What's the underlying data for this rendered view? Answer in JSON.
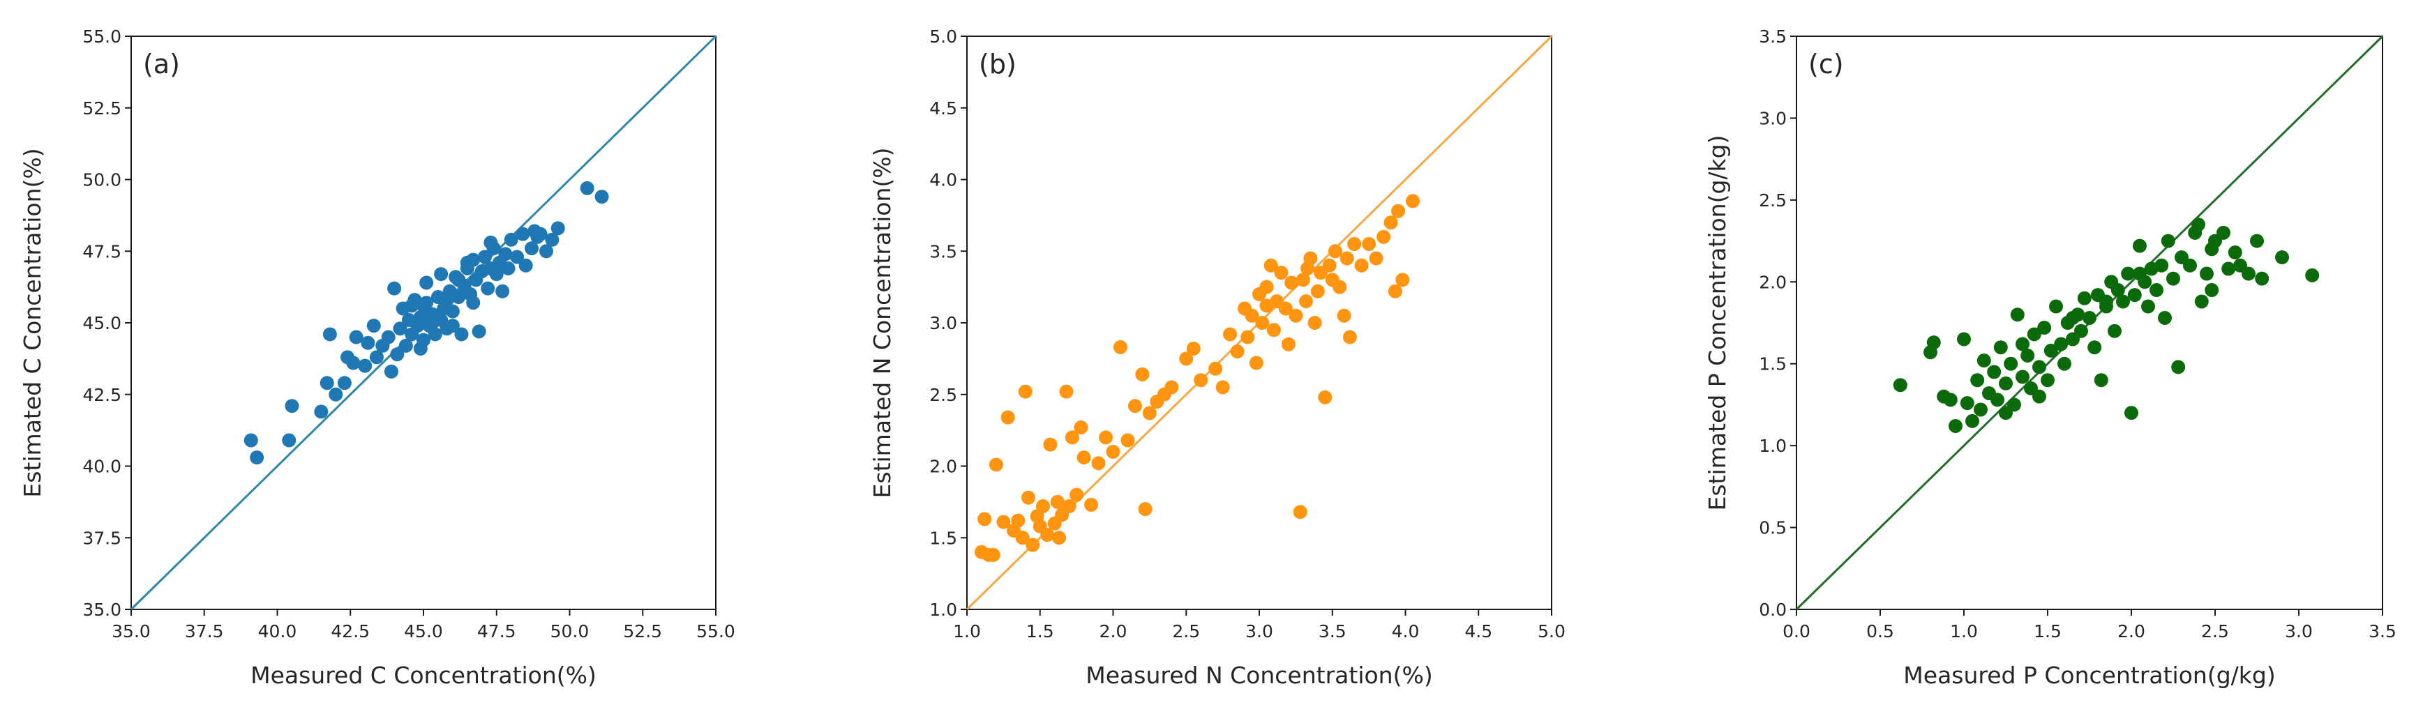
{
  "chart_data": [
    {
      "type": "scatter",
      "panel_label": "(a)",
      "xlabel": "Measured C Concentration(%)",
      "ylabel": "Estimated C Concentration(%)",
      "xlim": [
        35.0,
        55.0
      ],
      "ylim": [
        35.0,
        55.0
      ],
      "xticks": [
        "35.0",
        "37.5",
        "40.0",
        "42.5",
        "45.0",
        "47.5",
        "50.0",
        "52.5",
        "55.0"
      ],
      "yticks": [
        "35.0",
        "37.5",
        "40.0",
        "42.5",
        "45.0",
        "47.5",
        "50.0",
        "52.5",
        "55.0"
      ],
      "point_color": "#1f77b4",
      "line_color": "#2e86ab",
      "reference_line": [
        [
          35.0,
          35.0
        ],
        [
          55.0,
          55.0
        ]
      ],
      "points": [
        [
          39.1,
          40.9
        ],
        [
          39.3,
          40.3
        ],
        [
          40.4,
          40.9
        ],
        [
          40.5,
          42.1
        ],
        [
          41.5,
          41.9
        ],
        [
          41.7,
          42.9
        ],
        [
          41.8,
          44.6
        ],
        [
          42.0,
          42.5
        ],
        [
          42.3,
          42.9
        ],
        [
          42.6,
          43.6
        ],
        [
          42.7,
          44.5
        ],
        [
          43.0,
          43.5
        ],
        [
          43.1,
          44.3
        ],
        [
          43.4,
          43.8
        ],
        [
          43.6,
          44.2
        ],
        [
          43.8,
          44.5
        ],
        [
          43.9,
          43.3
        ],
        [
          44.0,
          46.2
        ],
        [
          44.1,
          43.9
        ],
        [
          44.2,
          44.8
        ],
        [
          44.3,
          45.5
        ],
        [
          44.4,
          44.2
        ],
        [
          44.5,
          45.1
        ],
        [
          44.6,
          44.6
        ],
        [
          44.7,
          45.8
        ],
        [
          44.8,
          44.9
        ],
        [
          44.9,
          45.2
        ],
        [
          45.0,
          44.4
        ],
        [
          45.0,
          45.6
        ],
        [
          45.1,
          46.4
        ],
        [
          45.2,
          44.9
        ],
        [
          45.3,
          45.3
        ],
        [
          45.4,
          44.6
        ],
        [
          45.5,
          45.9
        ],
        [
          45.6,
          45.1
        ],
        [
          45.7,
          45.5
        ],
        [
          45.8,
          44.8
        ],
        [
          45.9,
          46.1
        ],
        [
          46.0,
          45.4
        ],
        [
          46.1,
          46.6
        ],
        [
          46.2,
          45.9
        ],
        [
          46.3,
          44.6
        ],
        [
          46.4,
          46.3
        ],
        [
          46.5,
          46.9
        ],
        [
          46.6,
          46.0
        ],
        [
          46.7,
          47.2
        ],
        [
          46.8,
          46.5
        ],
        [
          46.9,
          44.7
        ],
        [
          47.0,
          46.8
        ],
        [
          47.1,
          47.3
        ],
        [
          47.2,
          46.2
        ],
        [
          47.3,
          46.9
        ],
        [
          47.4,
          47.6
        ],
        [
          47.5,
          46.7
        ],
        [
          47.6,
          47.1
        ],
        [
          47.7,
          46.1
        ],
        [
          47.8,
          47.4
        ],
        [
          48.0,
          47.9
        ],
        [
          48.2,
          47.3
        ],
        [
          48.4,
          48.1
        ],
        [
          48.5,
          47.0
        ],
        [
          48.7,
          47.6
        ],
        [
          48.8,
          48.2
        ],
        [
          49.0,
          48.1
        ],
        [
          49.2,
          47.5
        ],
        [
          49.4,
          47.9
        ],
        [
          49.6,
          48.3
        ],
        [
          50.6,
          49.7
        ],
        [
          51.1,
          49.4
        ],
        [
          45.3,
          45.0
        ],
        [
          45.6,
          46.7
        ],
        [
          46.0,
          44.9
        ],
        [
          44.9,
          44.1
        ],
        [
          46.5,
          47.1
        ],
        [
          47.9,
          46.9
        ],
        [
          43.3,
          44.9
        ],
        [
          42.4,
          43.8
        ],
        [
          46.7,
          45.7
        ],
        [
          45.8,
          45.8
        ],
        [
          44.6,
          45.6
        ],
        [
          47.3,
          47.8
        ],
        [
          48.9,
          48.0
        ],
        [
          46.2,
          46.5
        ],
        [
          45.1,
          45.7
        ]
      ]
    },
    {
      "type": "scatter",
      "panel_label": "(b)",
      "xlabel": "Measured N Concentration(%)",
      "ylabel": "Estimated N Concentration(%)",
      "xlim": [
        1.0,
        5.0
      ],
      "ylim": [
        1.0,
        5.0
      ],
      "xticks": [
        "1.0",
        "1.5",
        "2.0",
        "2.5",
        "3.0",
        "3.5",
        "4.0",
        "4.5",
        "5.0"
      ],
      "yticks": [
        "1.0",
        "1.5",
        "2.0",
        "2.5",
        "3.0",
        "3.5",
        "4.0",
        "4.5",
        "5.0"
      ],
      "point_color": "#ff9410",
      "line_color": "#f5a742",
      "reference_line": [
        [
          1.0,
          1.0
        ],
        [
          5.0,
          5.0
        ]
      ],
      "points": [
        [
          1.1,
          1.4
        ],
        [
          1.12,
          1.63
        ],
        [
          1.18,
          1.38
        ],
        [
          1.2,
          2.01
        ],
        [
          1.25,
          1.61
        ],
        [
          1.28,
          2.34
        ],
        [
          1.32,
          1.55
        ],
        [
          1.38,
          1.5
        ],
        [
          1.4,
          2.52
        ],
        [
          1.42,
          1.78
        ],
        [
          1.45,
          1.45
        ],
        [
          1.48,
          1.65
        ],
        [
          1.5,
          1.58
        ],
        [
          1.52,
          1.72
        ],
        [
          1.55,
          1.52
        ],
        [
          1.57,
          2.15
        ],
        [
          1.6,
          1.6
        ],
        [
          1.62,
          1.75
        ],
        [
          1.65,
          1.66
        ],
        [
          1.68,
          2.52
        ],
        [
          1.7,
          1.72
        ],
        [
          1.72,
          2.2
        ],
        [
          1.75,
          1.8
        ],
        [
          1.78,
          2.27
        ],
        [
          1.8,
          2.06
        ],
        [
          1.85,
          1.73
        ],
        [
          1.9,
          2.02
        ],
        [
          1.95,
          2.2
        ],
        [
          2.0,
          2.1
        ],
        [
          2.05,
          2.83
        ],
        [
          2.1,
          2.18
        ],
        [
          2.15,
          2.42
        ],
        [
          2.2,
          2.64
        ],
        [
          2.22,
          1.7
        ],
        [
          2.25,
          2.37
        ],
        [
          2.3,
          2.45
        ],
        [
          2.35,
          2.5
        ],
        [
          2.4,
          2.55
        ],
        [
          2.5,
          2.75
        ],
        [
          2.55,
          2.82
        ],
        [
          2.6,
          2.6
        ],
        [
          2.7,
          2.68
        ],
        [
          2.75,
          2.55
        ],
        [
          2.8,
          2.92
        ],
        [
          2.85,
          2.8
        ],
        [
          2.9,
          3.1
        ],
        [
          2.92,
          2.9
        ],
        [
          2.95,
          3.05
        ],
        [
          2.98,
          2.72
        ],
        [
          3.0,
          3.2
        ],
        [
          3.02,
          3.0
        ],
        [
          3.05,
          3.25
        ],
        [
          3.08,
          3.4
        ],
        [
          3.1,
          2.95
        ],
        [
          3.12,
          3.15
        ],
        [
          3.15,
          3.35
        ],
        [
          3.18,
          3.1
        ],
        [
          3.2,
          2.85
        ],
        [
          3.22,
          3.28
        ],
        [
          3.25,
          3.05
        ],
        [
          3.28,
          1.68
        ],
        [
          3.3,
          3.3
        ],
        [
          3.32,
          3.15
        ],
        [
          3.35,
          3.45
        ],
        [
          3.38,
          3.0
        ],
        [
          3.4,
          3.22
        ],
        [
          3.42,
          3.35
        ],
        [
          3.45,
          2.48
        ],
        [
          3.48,
          3.4
        ],
        [
          3.5,
          3.3
        ],
        [
          3.52,
          3.5
        ],
        [
          3.55,
          3.25
        ],
        [
          3.58,
          3.05
        ],
        [
          3.6,
          3.45
        ],
        [
          3.62,
          2.9
        ],
        [
          3.65,
          3.55
        ],
        [
          3.7,
          3.4
        ],
        [
          3.75,
          3.55
        ],
        [
          3.8,
          3.45
        ],
        [
          3.85,
          3.6
        ],
        [
          3.9,
          3.7
        ],
        [
          3.93,
          3.22
        ],
        [
          3.95,
          3.78
        ],
        [
          3.98,
          3.3
        ],
        [
          4.05,
          3.85
        ],
        [
          1.15,
          1.38
        ],
        [
          1.35,
          1.62
        ],
        [
          1.63,
          1.5
        ],
        [
          3.05,
          3.12
        ],
        [
          3.33,
          3.38
        ]
      ]
    },
    {
      "type": "scatter",
      "panel_label": "(c)",
      "xlabel": "Measured P Concentration(g/kg)",
      "ylabel": "Estimated P Concentration(g/kg)",
      "xlim": [
        0.0,
        3.5
      ],
      "ylim": [
        0.0,
        3.5
      ],
      "xticks": [
        "0.0",
        "0.5",
        "1.0",
        "1.5",
        "2.0",
        "2.5",
        "3.0",
        "3.5"
      ],
      "yticks": [
        "0.0",
        "0.5",
        "1.0",
        "1.5",
        "2.0",
        "2.5",
        "3.0",
        "3.5"
      ],
      "point_color": "#0b6b0b",
      "line_color": "#1f6e2a",
      "reference_line": [
        [
          0.0,
          0.0
        ],
        [
          3.5,
          3.5
        ]
      ],
      "points": [
        [
          0.62,
          1.37
        ],
        [
          0.8,
          1.57
        ],
        [
          0.82,
          1.63
        ],
        [
          0.88,
          1.3
        ],
        [
          0.92,
          1.28
        ],
        [
          0.95,
          1.12
        ],
        [
          1.0,
          1.65
        ],
        [
          1.02,
          1.26
        ],
        [
          1.05,
          1.15
        ],
        [
          1.08,
          1.4
        ],
        [
          1.1,
          1.22
        ],
        [
          1.12,
          1.52
        ],
        [
          1.15,
          1.32
        ],
        [
          1.18,
          1.45
        ],
        [
          1.2,
          1.28
        ],
        [
          1.22,
          1.6
        ],
        [
          1.25,
          1.38
        ],
        [
          1.28,
          1.5
        ],
        [
          1.3,
          1.25
        ],
        [
          1.32,
          1.8
        ],
        [
          1.35,
          1.42
        ],
        [
          1.38,
          1.55
        ],
        [
          1.4,
          1.35
        ],
        [
          1.42,
          1.68
        ],
        [
          1.45,
          1.48
        ],
        [
          1.48,
          1.72
        ],
        [
          1.5,
          1.4
        ],
        [
          1.52,
          1.58
        ],
        [
          1.55,
          1.85
        ],
        [
          1.58,
          1.62
        ],
        [
          1.6,
          1.5
        ],
        [
          1.62,
          1.75
        ],
        [
          1.65,
          1.65
        ],
        [
          1.68,
          1.8
        ],
        [
          1.7,
          1.7
        ],
        [
          1.72,
          1.9
        ],
        [
          1.75,
          1.78
        ],
        [
          1.78,
          1.6
        ],
        [
          1.8,
          1.92
        ],
        [
          1.82,
          1.4
        ],
        [
          1.85,
          1.85
        ],
        [
          1.88,
          2.0
        ],
        [
          1.9,
          1.7
        ],
        [
          1.92,
          1.95
        ],
        [
          1.95,
          1.88
        ],
        [
          1.98,
          2.05
        ],
        [
          2.0,
          1.2
        ],
        [
          2.02,
          1.92
        ],
        [
          2.05,
          2.22
        ],
        [
          2.08,
          2.0
        ],
        [
          2.1,
          1.85
        ],
        [
          2.12,
          2.08
        ],
        [
          2.15,
          1.95
        ],
        [
          2.18,
          2.1
        ],
        [
          2.2,
          1.78
        ],
        [
          2.22,
          2.25
        ],
        [
          2.25,
          2.02
        ],
        [
          2.28,
          1.48
        ],
        [
          2.3,
          2.15
        ],
        [
          2.35,
          2.1
        ],
        [
          2.38,
          2.3
        ],
        [
          2.4,
          2.35
        ],
        [
          2.42,
          1.88
        ],
        [
          2.45,
          2.05
        ],
        [
          2.48,
          2.2
        ],
        [
          2.5,
          2.25
        ],
        [
          2.55,
          2.3
        ],
        [
          2.58,
          2.08
        ],
        [
          2.62,
          2.18
        ],
        [
          2.65,
          2.1
        ],
        [
          2.7,
          2.05
        ],
        [
          2.75,
          2.25
        ],
        [
          2.78,
          2.02
        ],
        [
          2.9,
          2.15
        ],
        [
          3.08,
          2.04
        ],
        [
          1.25,
          1.2
        ],
        [
          1.45,
          1.3
        ],
        [
          1.65,
          1.78
        ],
        [
          1.85,
          1.88
        ],
        [
          2.05,
          2.05
        ],
        [
          1.35,
          1.62
        ],
        [
          2.48,
          1.95
        ]
      ]
    }
  ]
}
